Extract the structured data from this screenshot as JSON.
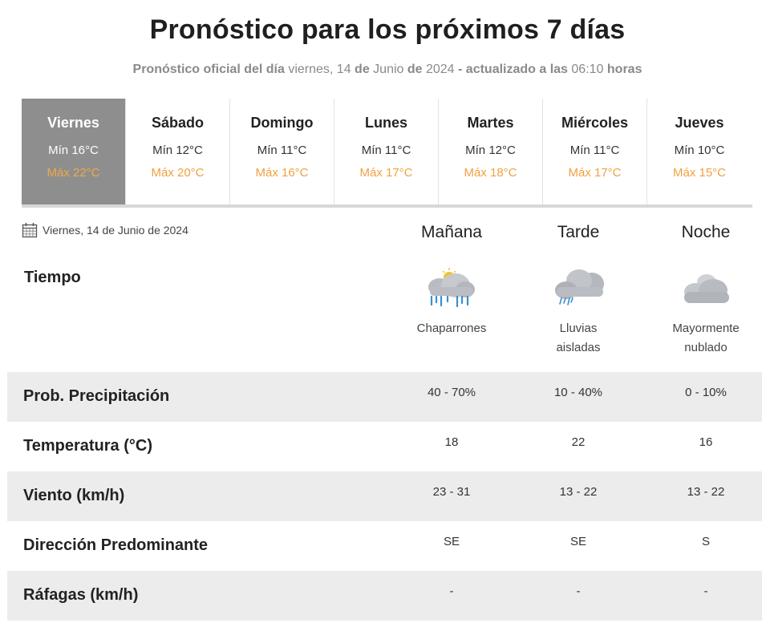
{
  "header": {
    "title": "Pronóstico para los próximos 7 días",
    "subtitle": {
      "part1": "Pronóstico oficial del día",
      "part2": " viernes, 14 ",
      "part3": "de",
      "part4": " Junio ",
      "part5": "de",
      "part6": " 2024 ",
      "part7": "- actualizado a las",
      "part8": " 06:10 ",
      "part9": "horas"
    }
  },
  "days": [
    {
      "name": "Viernes",
      "min": "Mín 16°C",
      "max": "Máx 22°C",
      "active": true
    },
    {
      "name": "Sábado",
      "min": "Mín 12°C",
      "max": "Máx 20°C"
    },
    {
      "name": "Domingo",
      "min": "Mín 11°C",
      "max": "Máx 16°C"
    },
    {
      "name": "Lunes",
      "min": "Mín 11°C",
      "max": "Máx 17°C"
    },
    {
      "name": "Martes",
      "min": "Mín 12°C",
      "max": "Máx 18°C"
    },
    {
      "name": "Miércoles",
      "min": "Mín 11°C",
      "max": "Máx 17°C"
    },
    {
      "name": "Jueves",
      "min": "Mín 10°C",
      "max": "Máx 15°C"
    }
  ],
  "detail": {
    "date": "Viernes, 14 de Junio de 2024",
    "date_icon": "calendar-icon",
    "periods": [
      "Mañana",
      "Tarde",
      "Noche"
    ],
    "tiempo_label": "Tiempo",
    "conditions": [
      {
        "icon": "showers-sun-cloud-icon",
        "lines": [
          "Chaparrones"
        ]
      },
      {
        "icon": "rain-cloud-icon",
        "lines": [
          "Lluvias",
          "aisladas"
        ]
      },
      {
        "icon": "cloudy-night-icon",
        "lines": [
          "Mayormente",
          "nublado"
        ]
      }
    ]
  },
  "rows": [
    {
      "label": "Prob. Precipitación",
      "values": [
        "40 - 70%",
        "10 - 40%",
        "0 - 10%"
      ]
    },
    {
      "label": "Temperatura (°C)",
      "values": [
        "18",
        "22",
        "16"
      ]
    },
    {
      "label": "Viento (km/h)",
      "values": [
        "23 - 31",
        "13 - 22",
        "13 - 22"
      ]
    },
    {
      "label": "Dirección Predominante",
      "values": [
        "SE",
        "SE",
        "S"
      ]
    },
    {
      "label": "Ráfagas (km/h)",
      "values": [
        "-",
        "-",
        "-"
      ]
    }
  ],
  "colors": {
    "active_tab": "#8e8e8e",
    "max_temp": "#f0a040",
    "row_shade": "#ececec"
  }
}
